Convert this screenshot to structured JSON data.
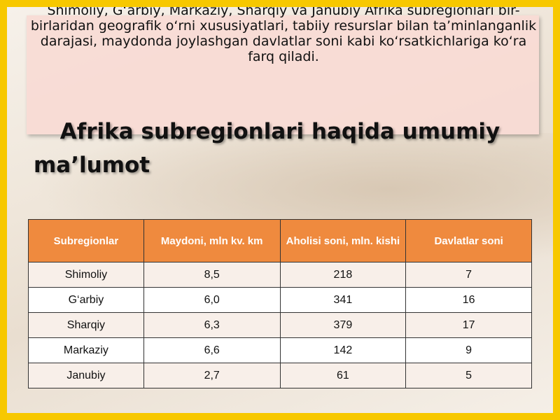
{
  "intro": "Shimoliy, G‘arbiy, Markaziy, Sharqiy va Janubiy Afrika subregionlari bir-birlaridan geografik o‘rni xususiyatlari, tabiiy resurslar bilan ta’minlanganlik darajasi, maydonda joylashgan davlatlar soni kabi ko‘rsatkichlariga ko‘ra farq qiladi.",
  "title": {
    "line1": "Afrika subregionlari haqida umumiy",
    "line2": "ma’lumot"
  },
  "table": {
    "header": [
      "Subregionlar",
      "Maydoni, mln kv. km",
      "Aholisi soni, mln. kishi",
      "Davlatlar soni"
    ],
    "rows": [
      [
        "Shimoliy",
        "8,5",
        "218",
        "7"
      ],
      [
        "G‘arbiy",
        "6,0",
        "341",
        "16"
      ],
      [
        "Sharqiy",
        "6,3",
        "379",
        "17"
      ],
      [
        "Markaziy",
        "6,6",
        "142",
        "9"
      ],
      [
        "Janubiy",
        "2,7",
        "61",
        "5"
      ]
    ]
  }
}
